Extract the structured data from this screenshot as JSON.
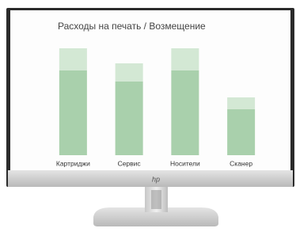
{
  "chart_data": {
    "type": "stacked-bar",
    "title": "Расходы на печать / Возмещение",
    "categories": [
      "Картриджи",
      "Сервис",
      "Носители",
      "Сканер"
    ],
    "series": [
      {
        "color": "#a9d0ac",
        "values": [
          107,
          93,
          107,
          58
        ]
      },
      {
        "color": "#d3e8d4",
        "values": [
          28,
          23,
          28,
          15
        ]
      }
    ]
  },
  "brand": "hp"
}
